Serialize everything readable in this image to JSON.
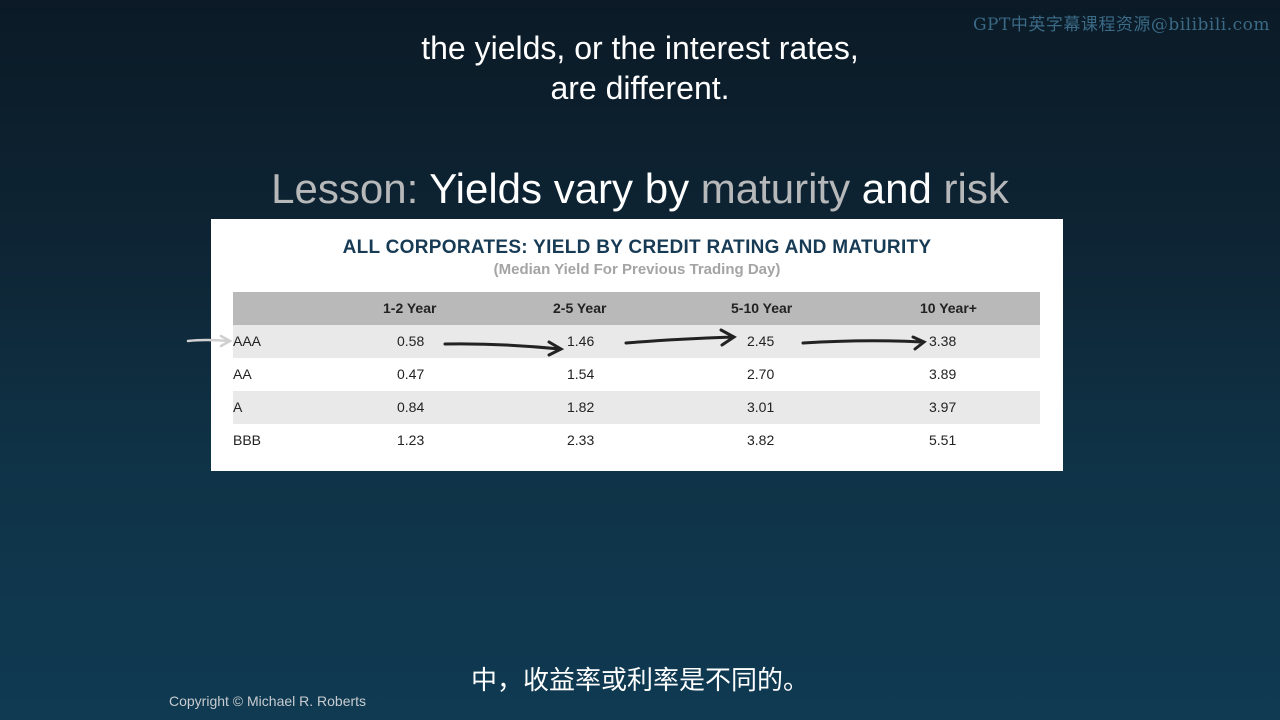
{
  "watermark": "GPT中英字幕课程资源@bilibili.com",
  "caption_en": {
    "line1": "the yields, or the interest rates,",
    "line2": "are different."
  },
  "lesson": {
    "prefix": "Lesson:",
    "word1": "Yields vary by",
    "word2": "maturity",
    "word3": "and",
    "word4": "risk"
  },
  "table": {
    "title": "ALL CORPORATES: YIELD BY CREDIT RATING AND MATURITY",
    "subtitle": "(Median Yield For Previous Trading Day)",
    "headers": [
      "",
      "1-2 Year",
      "2-5 Year",
      "5-10 Year",
      "10 Year+"
    ],
    "rows": [
      {
        "rating": "AAA",
        "values": [
          "0.58",
          "1.46",
          "2.45",
          "3.38"
        ]
      },
      {
        "rating": "AA",
        "values": [
          "0.47",
          "1.54",
          "2.70",
          "3.89"
        ]
      },
      {
        "rating": "A",
        "values": [
          "0.84",
          "1.82",
          "3.01",
          "3.97"
        ]
      },
      {
        "rating": "BBB",
        "values": [
          "1.23",
          "2.33",
          "3.82",
          "5.51"
        ]
      }
    ]
  },
  "caption_zh": "中，收益率或利率是不同的。",
  "copyright": "Copyright © Michael R. Roberts"
}
